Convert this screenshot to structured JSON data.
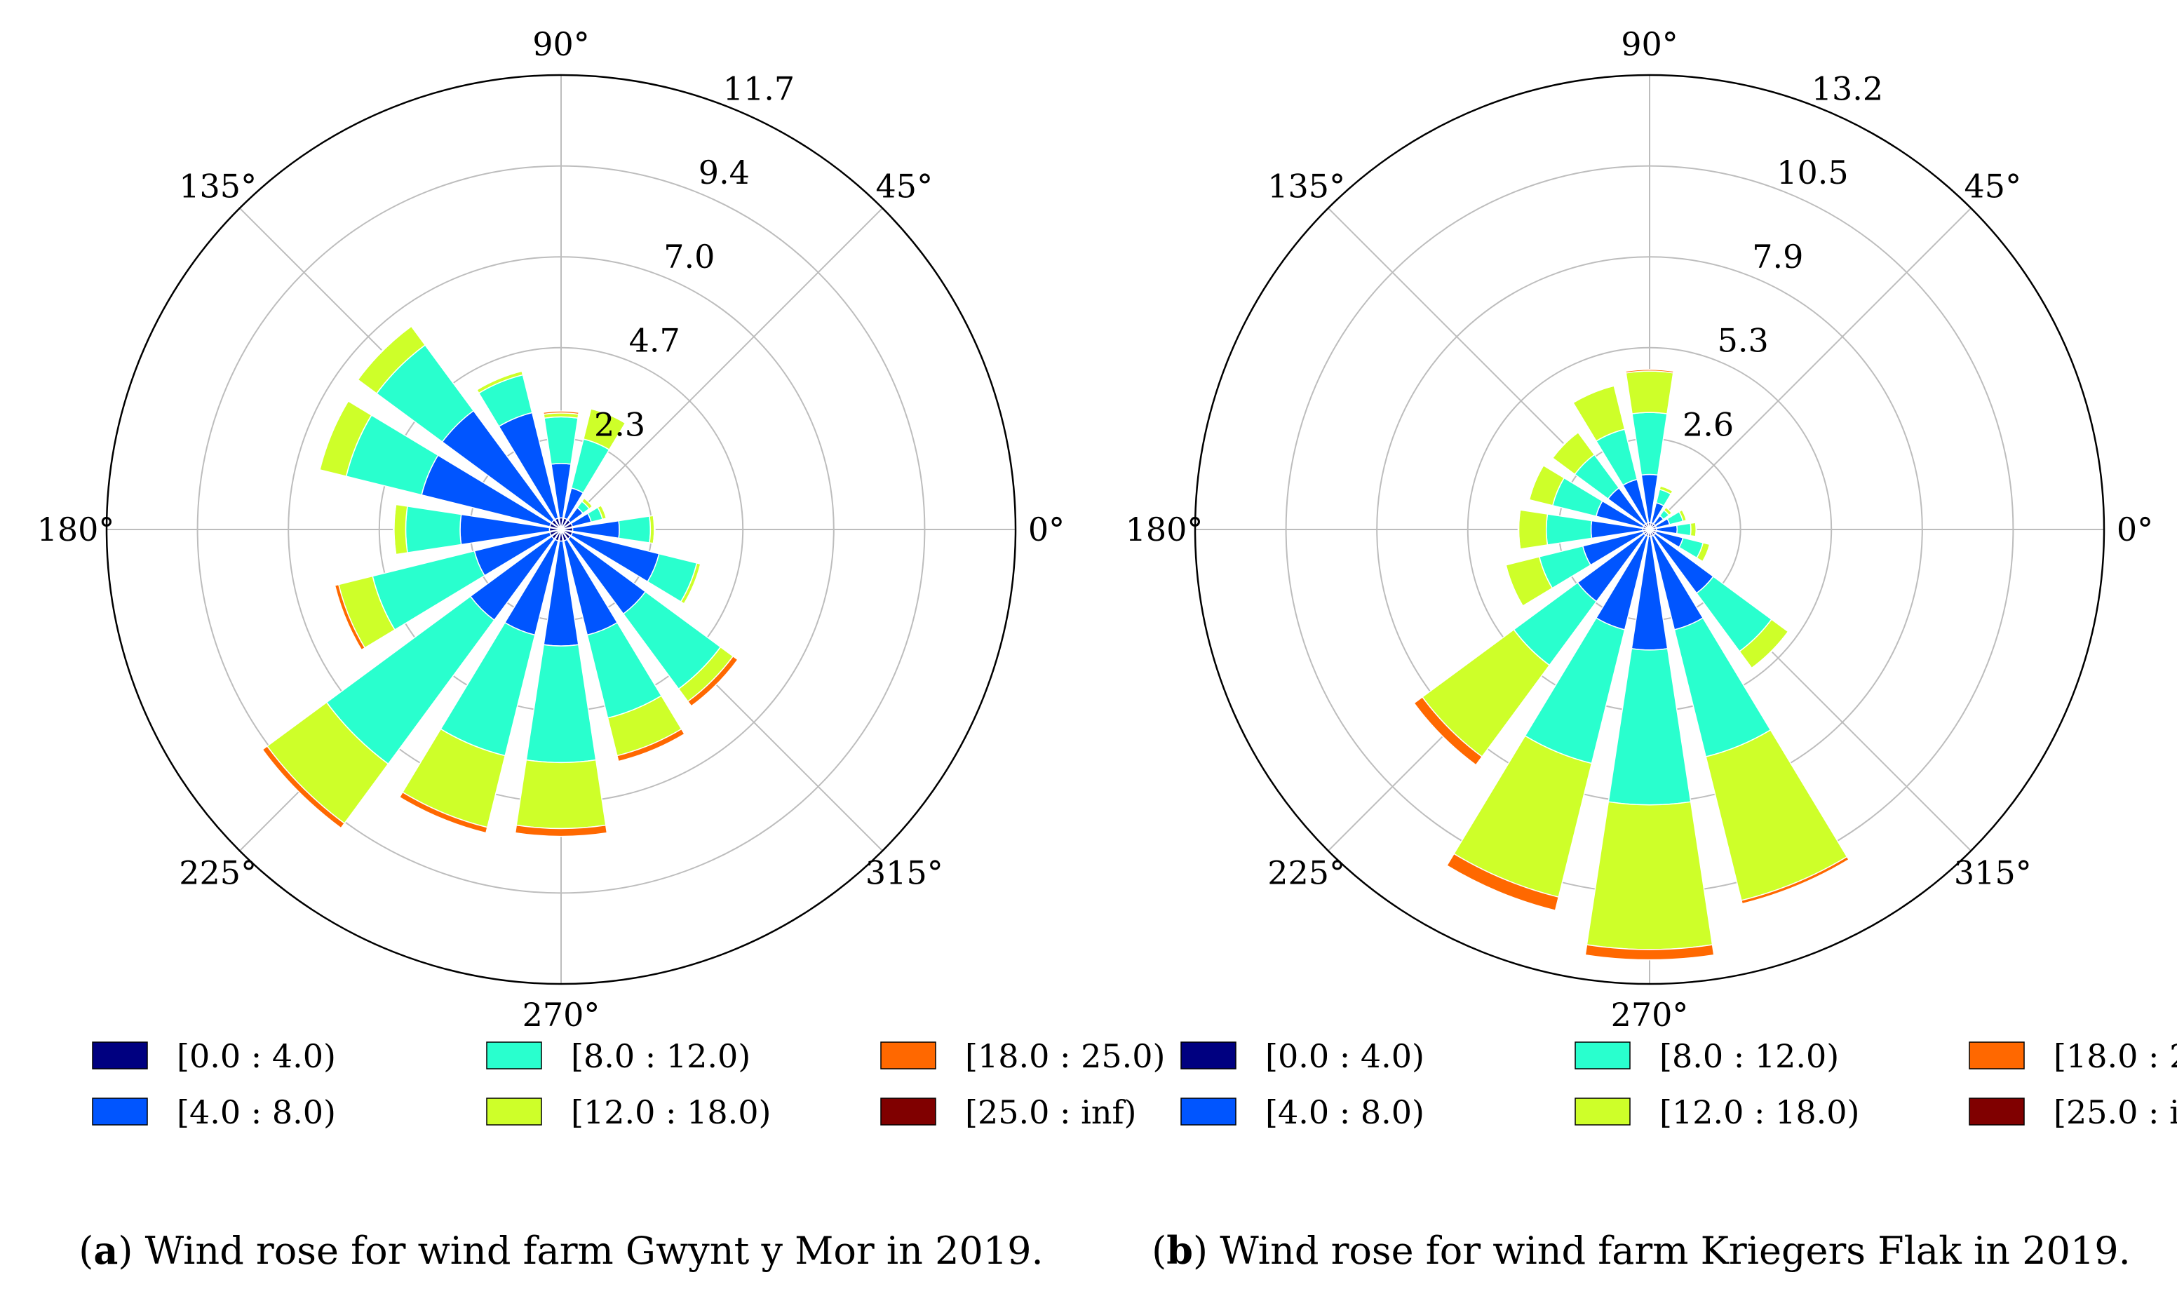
{
  "bins": [
    {
      "label": "[0.0 : 4.0)",
      "color": "#000080"
    },
    {
      "label": "[4.0 : 8.0)",
      "color": "#0055ff"
    },
    {
      "label": "[8.0 : 12.0)",
      "color": "#29ffce"
    },
    {
      "label": "[12.0 : 18.0)",
      "color": "#ceff29"
    },
    {
      "label": "[18.0 : 25.0)",
      "color": "#ff6800"
    },
    {
      "label": "[25.0 : inf)",
      "color": "#800000"
    }
  ],
  "directions_deg": [
    0,
    22.5,
    45,
    67.5,
    90,
    112.5,
    135,
    157.5,
    180,
    202.5,
    225,
    247.5,
    270,
    292.5,
    315,
    337.5
  ],
  "angle_labels": [
    "0°",
    "45°",
    "90°",
    "135°",
    "180°",
    "225°",
    "270°",
    "315°"
  ],
  "chart_data": [
    {
      "type": "windrose",
      "caption_letter": "a",
      "caption_text": "Wind rose for wind farm Gwynt y Mor in 2019.",
      "radial_ticks": [
        "2.3",
        "4.7",
        "7.0",
        "9.4",
        "11.7"
      ],
      "radial_tick_values": [
        2.34,
        4.68,
        7.02,
        9.36,
        11.7
      ],
      "rmax": 11.7,
      "series_cumulative": [
        [
          0.3,
          1.5,
          2.3,
          2.4,
          2.42,
          2.42
        ],
        [
          0.3,
          0.8,
          1.1,
          1.2,
          1.22,
          1.22
        ],
        [
          0.3,
          0.7,
          0.9,
          1.0,
          1.0,
          1.0
        ],
        [
          0.3,
          1.1,
          2.4,
          3.2,
          3.22,
          3.22
        ],
        [
          0.3,
          1.7,
          2.9,
          3.0,
          3.05,
          3.05
        ],
        [
          0.3,
          3.1,
          4.1,
          4.2,
          4.22,
          4.22
        ],
        [
          0.3,
          3.8,
          5.9,
          6.5,
          6.52,
          6.52
        ],
        [
          0.3,
          3.7,
          5.7,
          6.4,
          6.42,
          6.42
        ],
        [
          0.3,
          2.6,
          4.0,
          4.3,
          4.32,
          4.32
        ],
        [
          0.3,
          2.3,
          5.0,
          5.9,
          6.0,
          6.0
        ],
        [
          0.3,
          2.9,
          7.5,
          9.4,
          9.55,
          9.55
        ],
        [
          0.3,
          2.8,
          6.0,
          7.9,
          8.05,
          8.05
        ],
        [
          0.3,
          3.0,
          6.0,
          7.7,
          7.9,
          7.9
        ],
        [
          0.3,
          2.8,
          5.0,
          6.0,
          6.15,
          6.15
        ],
        [
          0.3,
          2.7,
          5.1,
          5.5,
          5.65,
          5.65
        ],
        [
          0.3,
          2.6,
          3.6,
          3.7,
          3.72,
          3.72
        ]
      ]
    },
    {
      "type": "windrose",
      "caption_letter": "b",
      "caption_text": "Wind rose for wind farm Kriegers Flak in 2019.",
      "radial_ticks": [
        "2.6",
        "5.3",
        "7.9",
        "10.5",
        "13.2"
      ],
      "radial_tick_values": [
        2.64,
        5.28,
        7.92,
        10.56,
        13.2
      ],
      "rmax": 13.2,
      "series_cumulative": [
        [
          0.2,
          0.8,
          1.2,
          1.35,
          1.36,
          1.36
        ],
        [
          0.2,
          0.6,
          1.0,
          1.1,
          1.1,
          1.1
        ],
        [
          0.2,
          0.5,
          0.7,
          0.8,
          0.8,
          0.8
        ],
        [
          0.2,
          0.8,
          1.2,
          1.3,
          1.3,
          1.3
        ],
        [
          0.2,
          1.6,
          3.4,
          4.6,
          4.65,
          4.65
        ],
        [
          0.2,
          1.5,
          3.0,
          4.3,
          4.33,
          4.33
        ],
        [
          0.2,
          1.5,
          2.7,
          3.5,
          3.52,
          3.52
        ],
        [
          0.2,
          1.6,
          2.9,
          3.6,
          3.62,
          3.62
        ],
        [
          0.2,
          1.7,
          3.0,
          3.8,
          3.82,
          3.82
        ],
        [
          0.2,
          2.0,
          3.3,
          4.3,
          4.32,
          4.32
        ],
        [
          0.2,
          2.6,
          4.9,
          8.2,
          8.5,
          8.5
        ],
        [
          0.2,
          3.0,
          7.0,
          11.0,
          11.4,
          11.4
        ],
        [
          0.2,
          3.5,
          8.0,
          12.2,
          12.5,
          12.5
        ],
        [
          0.2,
          3.0,
          6.8,
          11.1,
          11.2,
          11.2
        ],
        [
          0.2,
          2.3,
          4.4,
          5.0,
          5.02,
          5.02
        ],
        [
          0.2,
          1.0,
          1.6,
          1.8,
          1.82,
          1.82
        ]
      ]
    }
  ]
}
